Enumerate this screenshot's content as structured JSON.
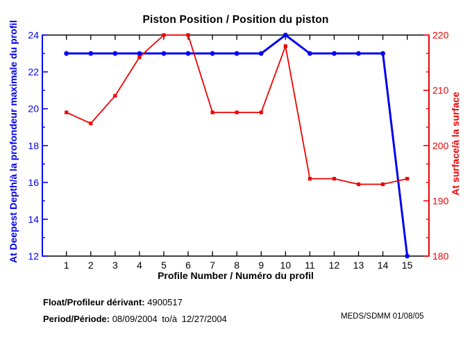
{
  "figure": {
    "footer": {
      "float_label": "Float/Profileur dérivant:",
      "float_value": "4900517",
      "period_label": "Period/Période:",
      "period_from": "08/09/2004",
      "period_conj": "to/à",
      "period_to": "12/27/2004",
      "credit": "MEDS/SDMM  01/08/05"
    }
  },
  "colors": {
    "deep_series": "#0000F0",
    "surface_series": "#F00000",
    "frame": "#000000",
    "background": "#FFFFFF"
  },
  "chart_data": {
    "type": "line",
    "title": "Piston Position / Position du piston",
    "xlabel": "Profile Number / Numéro du profil",
    "grid": false,
    "legend": "none",
    "x": [
      1,
      2,
      3,
      4,
      5,
      6,
      7,
      8,
      9,
      10,
      11,
      12,
      13,
      14,
      15
    ],
    "x_axis": {
      "ticks": [
        1,
        2,
        3,
        4,
        5,
        6,
        7,
        8,
        9,
        10,
        11,
        12,
        13,
        14,
        15
      ],
      "color": "#000000"
    },
    "left_axis": {
      "label": "At Deepest Depth/à la profondeur maximale du profil",
      "min": 12,
      "max": 24,
      "ticks": [
        12,
        14,
        16,
        18,
        20,
        22,
        24
      ],
      "minor_ticks": [
        13,
        15,
        17,
        19,
        21,
        23
      ],
      "color": "#0000F0"
    },
    "right_axis": {
      "label": "At surface/à la surface",
      "min": 180,
      "max": 220,
      "ticks": [
        180,
        190,
        200,
        210,
        220
      ],
      "minor_ticks": [
        183.33,
        186.67,
        193.33,
        196.67,
        203.33,
        206.67,
        213.33,
        216.67
      ],
      "color": "#F00000"
    },
    "series": [
      {
        "name": "At Deepest Depth/à la profondeur maximale du profil",
        "axis": "left",
        "color": "#0000F0",
        "marker": "circle",
        "line_width": 3,
        "values": [
          23,
          23,
          23,
          23,
          23,
          23,
          23,
          23,
          23,
          24,
          23,
          23,
          23,
          23,
          12
        ]
      },
      {
        "name": "At surface/à la surface",
        "axis": "right",
        "color": "#F00000",
        "marker": "square",
        "line_width": 1.8,
        "values": [
          206,
          204,
          209,
          216,
          220,
          220,
          206,
          206,
          206,
          218,
          194,
          194,
          193,
          193,
          194
        ]
      }
    ]
  }
}
